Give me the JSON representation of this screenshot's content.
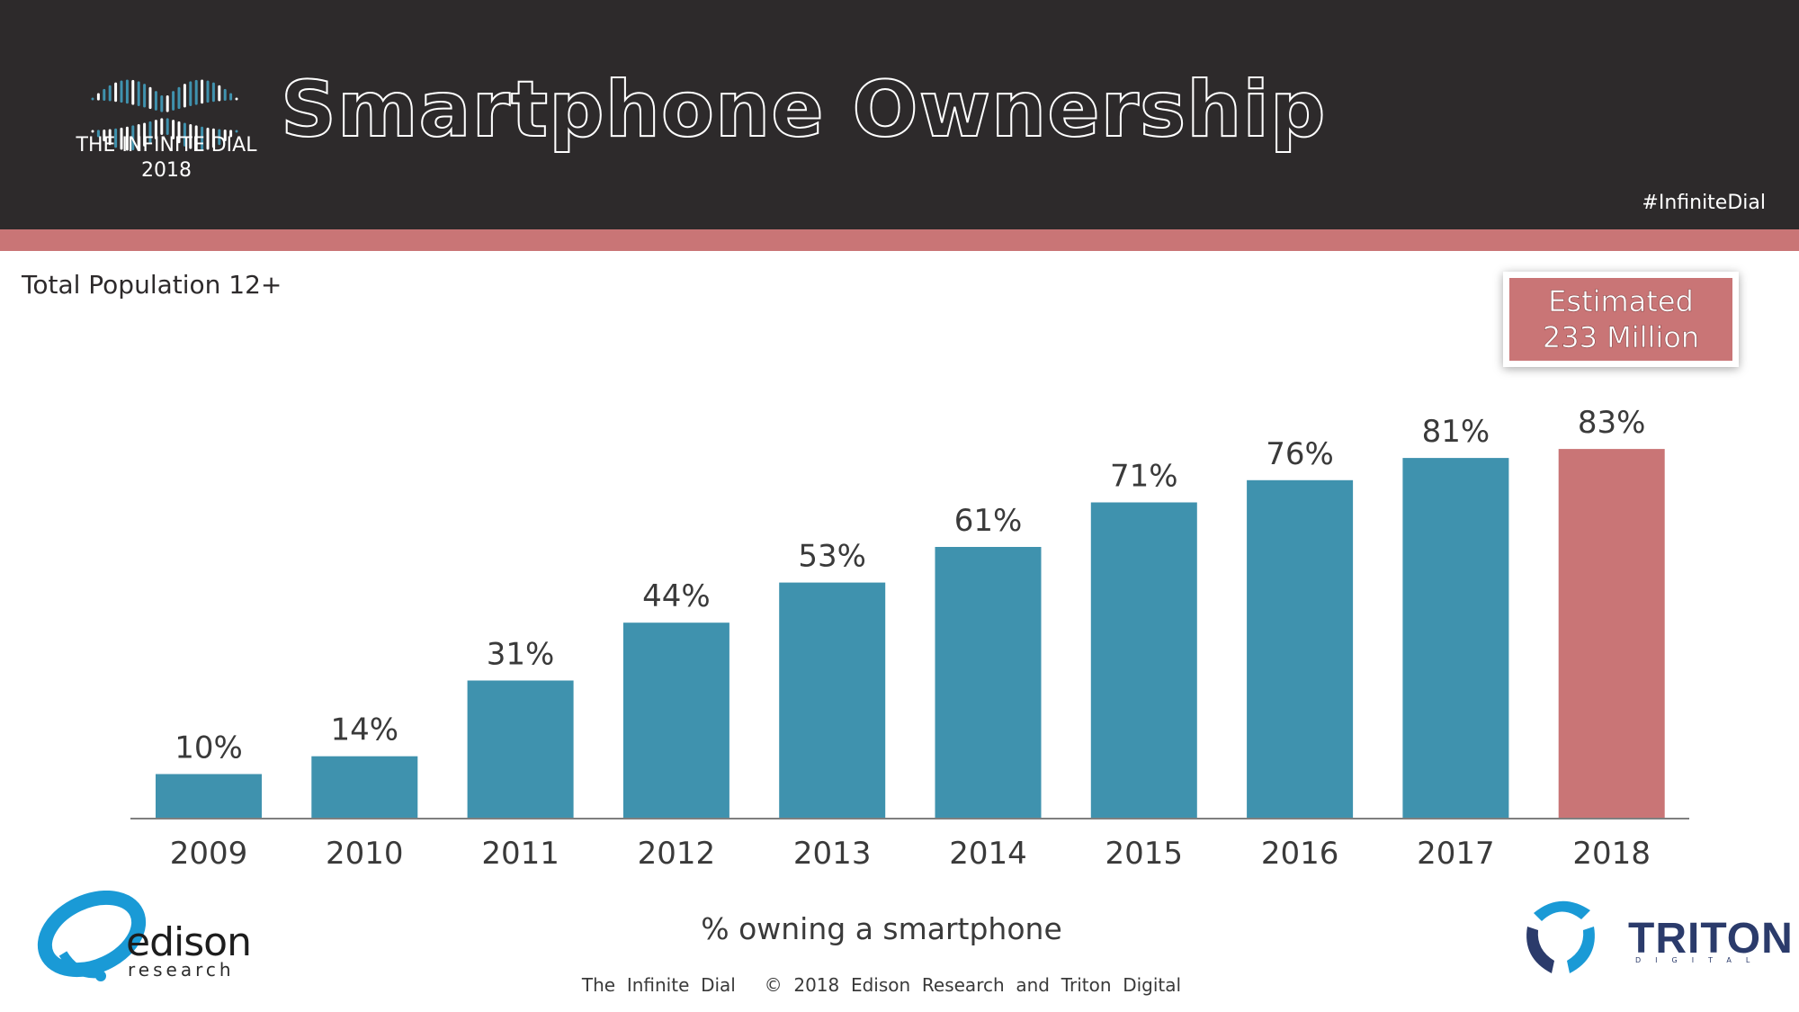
{
  "brand": {
    "logo_caption_line1": "THE INFINITE DIAL",
    "logo_caption_line2": "2018",
    "hashtag": "#InfiniteDial"
  },
  "header": {
    "title": "Smartphone  Ownership"
  },
  "subtitle": "Total  Population  12+",
  "callout": {
    "line1": "Estimated",
    "line2": "233 Million"
  },
  "colors": {
    "bar": "#3f92ae",
    "highlight_bar": "#c97576",
    "header_bg": "#2d2a2b",
    "accent": "#c97576",
    "axis": "#7f7f7f"
  },
  "chart_data": {
    "type": "bar",
    "title": "Smartphone Ownership",
    "categories": [
      "2009",
      "2010",
      "2011",
      "2012",
      "2013",
      "2014",
      "2015",
      "2016",
      "2017",
      "2018"
    ],
    "values": [
      10,
      14,
      31,
      44,
      53,
      61,
      71,
      76,
      81,
      83
    ],
    "value_labels": [
      "10%",
      "14%",
      "31%",
      "44%",
      "53%",
      "61%",
      "71%",
      "76%",
      "81%",
      "83%"
    ],
    "highlight_category": "2018",
    "xlabel": "% owning a smartphone",
    "ylabel": "",
    "ylim": [
      0,
      100
    ],
    "grid": false,
    "legend": "none"
  },
  "footer": {
    "text": "The  Infinite  Dial     ©  2018  Edison  Research  and  Triton  Digital"
  },
  "logos": {
    "edison_word": "edison",
    "edison_sub": "research",
    "triton_word": "TRITON",
    "triton_sub": "DIGITAL"
  }
}
